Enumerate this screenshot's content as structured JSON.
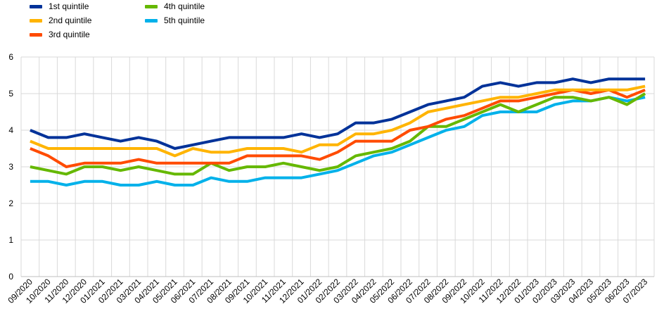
{
  "chart_data": {
    "type": "line",
    "title": "",
    "xlabel": "",
    "ylabel": "",
    "ylim": [
      0,
      6
    ],
    "yticks": [
      0,
      1,
      2,
      3,
      4,
      5,
      6
    ],
    "grid": true,
    "legend_position": "top-left",
    "categories": [
      "09/2020",
      "10/2020",
      "11/2020",
      "12/2020",
      "01/2021",
      "02/2021",
      "03/2021",
      "04/2021",
      "05/2021",
      "06/2021",
      "07/2021",
      "08/2021",
      "09/2021",
      "10/2021",
      "11/2021",
      "12/2021",
      "01/2022",
      "02/2022",
      "03/2022",
      "04/2022",
      "05/2022",
      "06/2022",
      "07/2022",
      "08/2022",
      "09/2022",
      "10/2022",
      "11/2022",
      "12/2022",
      "01/2023",
      "02/2023",
      "03/2023",
      "04/2023",
      "05/2023",
      "06/2023",
      "07/2023"
    ],
    "series": [
      {
        "name": "1st quintile",
        "color": "#003299",
        "values": [
          4.0,
          3.8,
          3.8,
          3.9,
          3.8,
          3.7,
          3.8,
          3.7,
          3.5,
          3.6,
          3.7,
          3.8,
          3.8,
          3.8,
          3.8,
          3.9,
          3.8,
          3.9,
          4.2,
          4.2,
          4.3,
          4.5,
          4.7,
          4.8,
          4.9,
          5.2,
          5.3,
          5.2,
          5.3,
          5.3,
          5.4,
          5.3,
          5.4,
          5.4,
          5.4
        ]
      },
      {
        "name": "2nd quintile",
        "color": "#FFB400",
        "values": [
          3.7,
          3.5,
          3.5,
          3.5,
          3.5,
          3.5,
          3.5,
          3.5,
          3.3,
          3.5,
          3.4,
          3.4,
          3.5,
          3.5,
          3.5,
          3.4,
          3.6,
          3.6,
          3.9,
          3.9,
          4.0,
          4.2,
          4.5,
          4.6,
          4.7,
          4.8,
          4.9,
          4.9,
          5.0,
          5.1,
          5.1,
          5.1,
          5.1,
          5.1,
          5.2
        ]
      },
      {
        "name": "3rd quintile",
        "color": "#FF4B00",
        "values": [
          3.5,
          3.3,
          3.0,
          3.1,
          3.1,
          3.1,
          3.2,
          3.1,
          3.1,
          3.1,
          3.1,
          3.1,
          3.3,
          3.3,
          3.3,
          3.3,
          3.2,
          3.4,
          3.7,
          3.7,
          3.7,
          4.0,
          4.1,
          4.3,
          4.4,
          4.6,
          4.8,
          4.8,
          4.9,
          5.0,
          5.1,
          5.0,
          5.1,
          4.9,
          5.1
        ]
      },
      {
        "name": "4th quintile",
        "color": "#65B800",
        "values": [
          3.0,
          2.9,
          2.8,
          3.0,
          3.0,
          2.9,
          3.0,
          2.9,
          2.8,
          2.8,
          3.1,
          2.9,
          3.0,
          3.0,
          3.1,
          3.0,
          2.9,
          3.0,
          3.3,
          3.4,
          3.5,
          3.7,
          4.1,
          4.1,
          4.3,
          4.5,
          4.7,
          4.5,
          4.7,
          4.9,
          4.9,
          4.8,
          4.9,
          4.7,
          5.0
        ]
      },
      {
        "name": "5th quintile",
        "color": "#00B1EA",
        "values": [
          2.6,
          2.6,
          2.5,
          2.6,
          2.6,
          2.5,
          2.5,
          2.6,
          2.5,
          2.5,
          2.7,
          2.6,
          2.6,
          2.7,
          2.7,
          2.7,
          2.8,
          2.9,
          3.1,
          3.3,
          3.4,
          3.6,
          3.8,
          4.0,
          4.1,
          4.4,
          4.5,
          4.5,
          4.5,
          4.7,
          4.8,
          4.8,
          4.9,
          4.8,
          4.9
        ]
      }
    ]
  }
}
